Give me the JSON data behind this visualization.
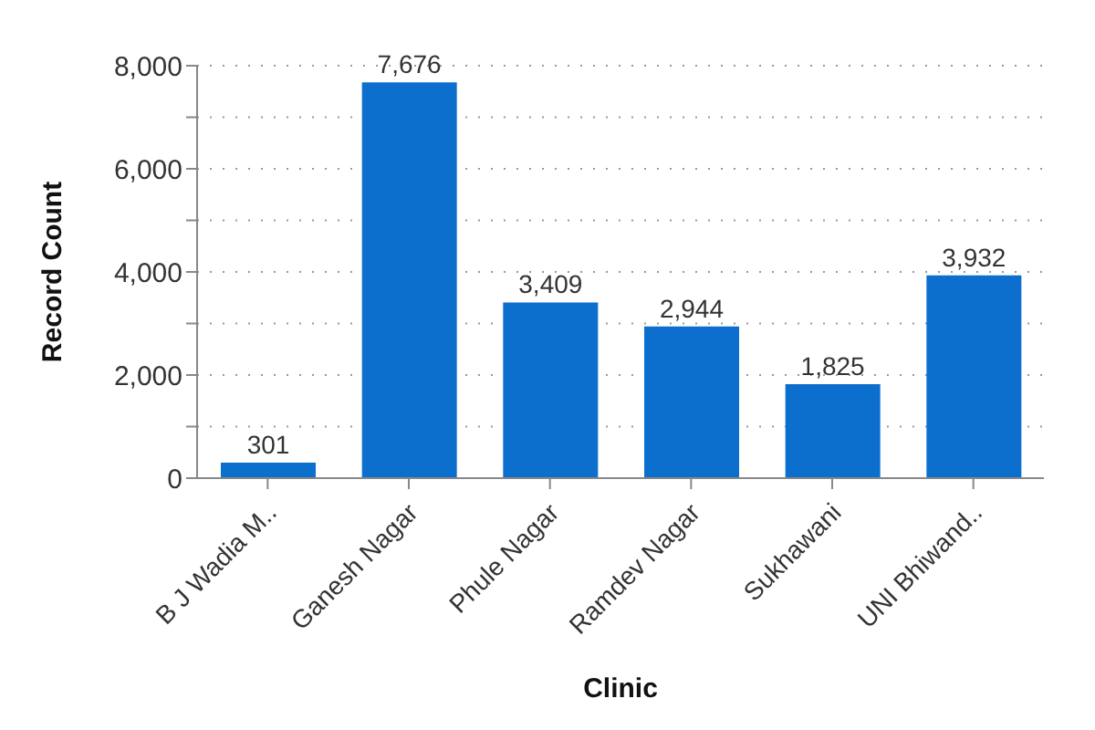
{
  "chart_data": {
    "type": "bar",
    "xlabel": "Clinic",
    "ylabel": "Record Count",
    "categories": [
      "B J Wadia M..",
      "Ganesh Nagar",
      "Phule Nagar",
      "Ramdev Nagar",
      "Sukhawani",
      "UNI Bhiwand.."
    ],
    "values": [
      301,
      7676,
      3409,
      2944,
      1825,
      3932
    ],
    "color": "#0c6fce",
    "ylim": [
      0,
      8000
    ],
    "yticks": [
      {
        "value": 0,
        "label": "0"
      },
      {
        "value": 1000,
        "label": null
      },
      {
        "value": 2000,
        "label": "2,000"
      },
      {
        "value": 3000,
        "label": null
      },
      {
        "value": 4000,
        "label": "4,000"
      },
      {
        "value": 5000,
        "label": null
      },
      {
        "value": 6000,
        "label": "6,000"
      },
      {
        "value": 7000,
        "label": null
      },
      {
        "value": 8000,
        "label": "8,000"
      }
    ],
    "value_labels": [
      "301",
      "7,676",
      "3,409",
      "2,944",
      "1,825",
      "3,932"
    ],
    "grid": "y"
  }
}
